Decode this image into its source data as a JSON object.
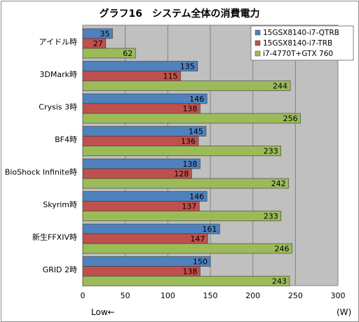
{
  "chart_data": {
    "type": "bar",
    "orientation": "horizontal",
    "title": "グラフ16　システム全体の消費電力",
    "categories": [
      "アイドル時",
      "3DMark時",
      "Crysis 3時",
      "BF4時",
      "BioShock Infinite時",
      "Skyrim時",
      "新生FFXIV時",
      "GRID 2時"
    ],
    "series": [
      {
        "name": "15GSX8140-i7-QTRB",
        "color": "#4f81bd",
        "values": [
          35,
          135,
          146,
          145,
          138,
          146,
          161,
          150
        ]
      },
      {
        "name": "15GSX8140-i7-TRB",
        "color": "#c0504d",
        "values": [
          27,
          115,
          138,
          136,
          128,
          137,
          147,
          138
        ]
      },
      {
        "name": "i7-4770T+GTX 760",
        "color": "#9bbb59",
        "values": [
          62,
          244,
          256,
          233,
          242,
          233,
          246,
          243
        ]
      }
    ],
    "xlim": [
      0,
      300
    ],
    "xticks": [
      "0",
      "50",
      "100",
      "150",
      "200",
      "250",
      "300"
    ],
    "unit_label": "(W)",
    "direction_label": "Low←",
    "grid": true,
    "legend_position": "top-right",
    "plot_background": "#c0c0c0"
  }
}
